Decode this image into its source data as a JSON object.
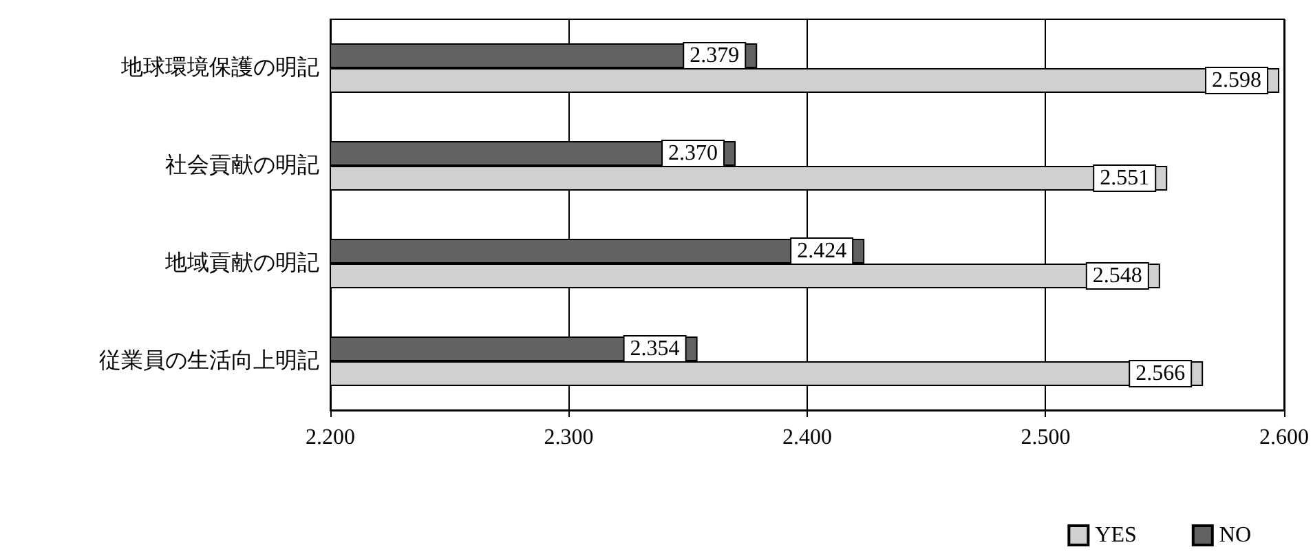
{
  "chart_data": {
    "type": "bar",
    "orientation": "horizontal",
    "categories": [
      "地球環境保護の明記",
      "社会貢献の明記",
      "地域貢献の明記",
      "従業員の生活向上明記"
    ],
    "series": [
      {
        "name": "YES",
        "color": "#d0d0d0",
        "values": [
          2.598,
          2.551,
          2.548,
          2.566
        ],
        "value_labels": [
          "2.598",
          "2.551",
          "2.548",
          "2.566"
        ]
      },
      {
        "name": "NO",
        "color": "#626262",
        "values": [
          2.379,
          2.37,
          2.424,
          2.354
        ],
        "value_labels": [
          "2.379",
          "2.370",
          "2.424",
          "2.354"
        ]
      }
    ],
    "xlim": [
      2.2,
      2.6
    ],
    "xticks": [
      {
        "value": 2.2,
        "label": "2.200"
      },
      {
        "value": 2.3,
        "label": "2.300"
      },
      {
        "value": 2.4,
        "label": "2.400"
      },
      {
        "value": 2.5,
        "label": "2.500"
      },
      {
        "value": 2.6,
        "label": "2.600"
      }
    ],
    "grid": "x",
    "legend": "bottom right"
  }
}
